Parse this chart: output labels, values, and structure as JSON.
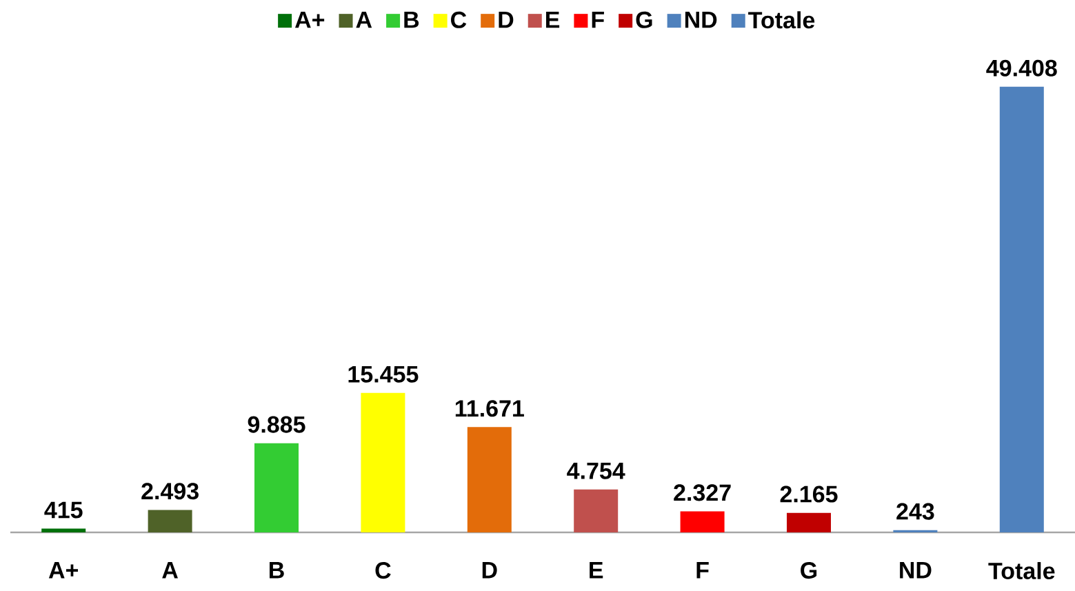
{
  "chart_data": {
    "type": "bar",
    "categories": [
      "A+",
      "A",
      "B",
      "C",
      "D",
      "E",
      "F",
      "G",
      "ND",
      "Totale"
    ],
    "series": [
      {
        "name": "A+",
        "color": "#00700a",
        "values": [
          415,
          null,
          null,
          null,
          null,
          null,
          null,
          null,
          null,
          null
        ],
        "value_labels": [
          "415",
          null,
          null,
          null,
          null,
          null,
          null,
          null,
          null,
          null
        ]
      },
      {
        "name": "A",
        "color": "#4f6228",
        "values": [
          null,
          2493,
          null,
          null,
          null,
          null,
          null,
          null,
          null,
          null
        ],
        "value_labels": [
          null,
          "2.493",
          null,
          null,
          null,
          null,
          null,
          null,
          null,
          null
        ]
      },
      {
        "name": "B",
        "color": "#33cc33",
        "values": [
          null,
          null,
          9885,
          null,
          null,
          null,
          null,
          null,
          null,
          null
        ],
        "value_labels": [
          null,
          null,
          "9.885",
          null,
          null,
          null,
          null,
          null,
          null,
          null
        ]
      },
      {
        "name": "C",
        "color": "#ffff00",
        "values": [
          null,
          null,
          null,
          15455,
          null,
          null,
          null,
          null,
          null,
          null
        ],
        "value_labels": [
          null,
          null,
          null,
          "15.455",
          null,
          null,
          null,
          null,
          null,
          null
        ]
      },
      {
        "name": "D",
        "color": "#e36c0a",
        "values": [
          null,
          null,
          null,
          null,
          11671,
          null,
          null,
          null,
          null,
          null
        ],
        "value_labels": [
          null,
          null,
          null,
          null,
          "11.671",
          null,
          null,
          null,
          null,
          null
        ]
      },
      {
        "name": "E",
        "color": "#c0504d",
        "values": [
          null,
          null,
          null,
          null,
          null,
          4754,
          null,
          null,
          null,
          null
        ],
        "value_labels": [
          null,
          null,
          null,
          null,
          null,
          "4.754",
          null,
          null,
          null,
          null
        ]
      },
      {
        "name": "F",
        "color": "#ff0000",
        "values": [
          null,
          null,
          null,
          null,
          null,
          null,
          2327,
          null,
          null,
          null
        ],
        "value_labels": [
          null,
          null,
          null,
          null,
          null,
          null,
          "2.327",
          null,
          null,
          null
        ]
      },
      {
        "name": "G",
        "color": "#c00000",
        "values": [
          null,
          null,
          null,
          null,
          null,
          null,
          null,
          2165,
          null,
          null
        ],
        "value_labels": [
          null,
          null,
          null,
          null,
          null,
          null,
          null,
          "2.165",
          null,
          null
        ]
      },
      {
        "name": "ND",
        "color": "#4f81bd",
        "values": [
          null,
          null,
          null,
          null,
          null,
          null,
          null,
          null,
          243,
          null
        ],
        "value_labels": [
          null,
          null,
          null,
          null,
          null,
          null,
          null,
          null,
          "243",
          null
        ]
      },
      {
        "name": "Totale",
        "color": "#4f81bd",
        "values": [
          null,
          null,
          null,
          null,
          null,
          null,
          null,
          null,
          null,
          49408
        ],
        "value_labels": [
          null,
          null,
          null,
          null,
          null,
          null,
          null,
          null,
          null,
          "49.408"
        ]
      }
    ],
    "legend": "top"
  }
}
